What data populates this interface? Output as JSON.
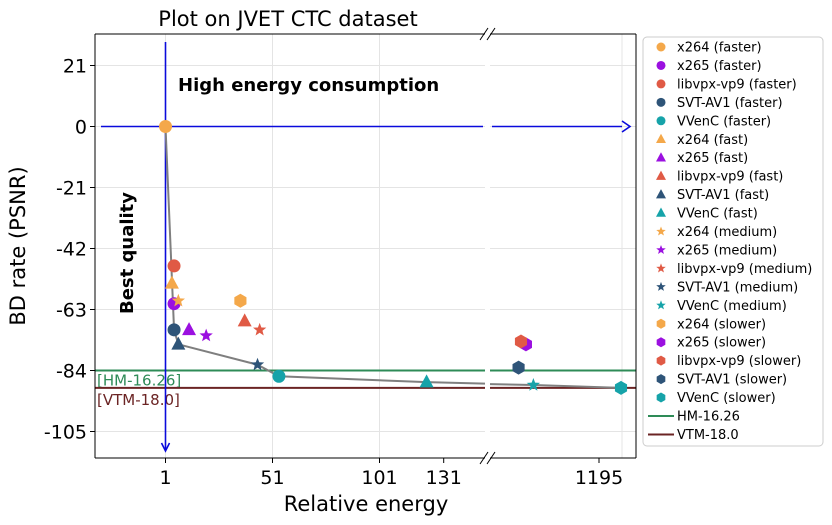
{
  "chart_data": {
    "type": "scatter",
    "title": "Plot on JVET CTC dataset",
    "xlabel": "Relative energy",
    "ylabel": "BD rate (PSNR)",
    "broken_x_axis": true,
    "x_tick_labels_left": [
      "1",
      "51",
      "101",
      "131"
    ],
    "x_tick_labels_right": [
      "1195"
    ],
    "y_tick_labels": [
      "21",
      "0",
      "-21",
      "-42",
      "-63",
      "-84",
      "-105"
    ],
    "ylim": [
      -112,
      31
    ],
    "grid": true,
    "legend_position": "outside-right",
    "annotations": {
      "top": "High energy consumption",
      "left": "Best quality"
    },
    "reference_lines": [
      {
        "name": "HM-16.26",
        "label": "[HM-16.26]",
        "y": -84,
        "color": "#2e8b57"
      },
      {
        "name": "VTM-18.0",
        "label": "[VTM-18.0]",
        "y": -90,
        "color": "#6b2424"
      }
    ],
    "codec_colors": {
      "x264": "#f4a84a",
      "x265": "#9b10e0",
      "libvpx-vp9": "#e05a45",
      "SVT-AV1": "#2e5478",
      "VVenC": "#16a3a9"
    },
    "preset_markers": {
      "faster": "circle",
      "fast": "triangle",
      "medium": "star",
      "slower": "hexagon"
    },
    "series": [
      {
        "name": "x264 (faster)",
        "codec": "x264",
        "preset": "faster",
        "x": 1,
        "y": 0
      },
      {
        "name": "x265 (faster)",
        "codec": "x265",
        "preset": "faster",
        "x": 5,
        "y": -61
      },
      {
        "name": "libvpx-vp9 (faster)",
        "codec": "libvpx-vp9",
        "preset": "faster",
        "x": 5,
        "y": -48
      },
      {
        "name": "SVT-AV1 (faster)",
        "codec": "SVT-AV1",
        "preset": "faster",
        "x": 5,
        "y": -70
      },
      {
        "name": "VVenC (faster)",
        "codec": "VVenC",
        "preset": "faster",
        "x": null,
        "y": null
      },
      {
        "name": "x264 (fast)",
        "codec": "x264",
        "preset": "fast",
        "x": 4,
        "y": -54
      },
      {
        "name": "x265 (fast)",
        "codec": "x265",
        "preset": "fast",
        "x": 12,
        "y": -70
      },
      {
        "name": "libvpx-vp9 (fast)",
        "codec": "libvpx-vp9",
        "preset": "fast",
        "x": 38,
        "y": -67
      },
      {
        "name": "SVT-AV1 (fast)",
        "codec": "SVT-AV1",
        "preset": "fast",
        "x": 7,
        "y": -75
      },
      {
        "name": "VVenC (fast)",
        "codec": "VVenC",
        "preset": "fast",
        "x": 123,
        "y": -88
      },
      {
        "name": "x264 (medium)",
        "codec": "x264",
        "preset": "medium",
        "x": 7,
        "y": -60
      },
      {
        "name": "x265 (medium)",
        "codec": "x265",
        "preset": "medium",
        "x": 20,
        "y": -72
      },
      {
        "name": "libvpx-vp9 (medium)",
        "codec": "libvpx-vp9",
        "preset": "medium",
        "x": 45,
        "y": -70
      },
      {
        "name": "SVT-AV1 (medium)",
        "codec": "SVT-AV1",
        "preset": "medium",
        "x": 44,
        "y": -82
      },
      {
        "name": "VVenC (medium)",
        "codec": "VVenC",
        "preset": "medium",
        "x": 155,
        "y": -89
      },
      {
        "name": "x264 (slower)",
        "codec": "x264",
        "preset": "slower",
        "x": 36,
        "y": -60
      },
      {
        "name": "x265 (slower)",
        "codec": "x265",
        "preset": "slower",
        "x": 145,
        "y": -75
      },
      {
        "name": "libvpx-vp9 (slower)",
        "codec": "libvpx-vp9",
        "preset": "slower",
        "x": 140,
        "y": -74
      },
      {
        "name": "SVT-AV1 (slower)",
        "codec": "SVT-AV1",
        "preset": "slower",
        "x": 138,
        "y": -83
      },
      {
        "name": "VVenC (slower)",
        "codec": "VVenC",
        "preset": "slower",
        "x": 1195,
        "y": -90
      },
      {
        "name": "VVenC (faster) marker",
        "codec": "VVenC",
        "preset": "faster",
        "x": 54,
        "y": -86
      }
    ],
    "pareto_front": [
      [
        1,
        0
      ],
      [
        5,
        -70
      ],
      [
        7,
        -75
      ],
      [
        44,
        -82
      ],
      [
        54,
        -86
      ],
      [
        123,
        -88
      ],
      [
        155,
        -89
      ],
      [
        1195,
        -90
      ]
    ]
  }
}
